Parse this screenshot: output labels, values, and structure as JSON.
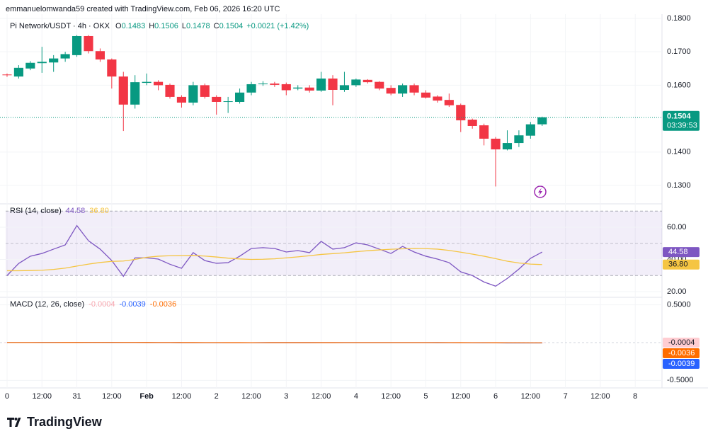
{
  "attribution": "emmanuelomwanda59 created with TradingView.com, Feb 06, 2026 16:20 UTC",
  "logo": "TradingView",
  "chart_data": [
    {
      "type": "candlestick",
      "title": "Pi Network/USDT · 4h · OKX",
      "ohlc_letters": [
        "O",
        "H",
        "L",
        "C"
      ],
      "change_label": "+0.0021 (+1.42%)",
      "countdown": "03:39:53",
      "up_color": "#089981",
      "down_color": "#f23645",
      "open": [
        0.1632,
        0.1626,
        0.165,
        0.1666,
        0.1668,
        0.168,
        0.169,
        0.1747,
        0.1702,
        0.1677,
        0.1626,
        0.1542,
        0.1607,
        0.161,
        0.1601,
        0.1565,
        0.1548,
        0.16,
        0.1565,
        0.155,
        0.155,
        0.1578,
        0.1603,
        0.1605,
        0.1603,
        0.159,
        0.1593,
        0.1584,
        0.162,
        0.1586,
        0.16,
        0.1616,
        0.161,
        0.1592,
        0.1575,
        0.16,
        0.1578,
        0.1566,
        0.1556,
        0.1541,
        0.1497,
        0.148,
        0.144,
        0.1408,
        0.1427,
        0.1449,
        0.1483
      ],
      "high": [
        0.1635,
        0.166,
        0.1672,
        0.1715,
        0.169,
        0.17,
        0.175,
        0.175,
        0.171,
        0.168,
        0.164,
        0.163,
        0.1635,
        0.1615,
        0.1605,
        0.157,
        0.161,
        0.1605,
        0.157,
        0.1565,
        0.159,
        0.161,
        0.1612,
        0.161,
        0.1608,
        0.16,
        0.16,
        0.164,
        0.163,
        0.164,
        0.162,
        0.1618,
        0.1612,
        0.16,
        0.1605,
        0.1605,
        0.1585,
        0.157,
        0.1575,
        0.1545,
        0.15,
        0.1485,
        0.1445,
        0.1465,
        0.1465,
        0.149,
        0.1506
      ],
      "low": [
        0.1625,
        0.162,
        0.1645,
        0.1637,
        0.164,
        0.167,
        0.1685,
        0.1695,
        0.167,
        0.159,
        0.1463,
        0.153,
        0.16,
        0.1585,
        0.156,
        0.1533,
        0.154,
        0.156,
        0.1512,
        0.1517,
        0.1545,
        0.157,
        0.1598,
        0.1595,
        0.157,
        0.1585,
        0.1578,
        0.158,
        0.154,
        0.158,
        0.1595,
        0.1605,
        0.1585,
        0.157,
        0.1565,
        0.157,
        0.156,
        0.1548,
        0.1535,
        0.146,
        0.147,
        0.142,
        0.1297,
        0.1405,
        0.1415,
        0.144,
        0.1478
      ],
      "close": [
        0.163,
        0.1652,
        0.1667,
        0.167,
        0.168,
        0.1693,
        0.1747,
        0.1702,
        0.1677,
        0.1626,
        0.1542,
        0.1609,
        0.161,
        0.16,
        0.1565,
        0.1548,
        0.16,
        0.1565,
        0.155,
        0.1552,
        0.1578,
        0.1603,
        0.1605,
        0.1601,
        0.1585,
        0.1593,
        0.1584,
        0.162,
        0.1586,
        0.16,
        0.1617,
        0.1609,
        0.159,
        0.1575,
        0.16,
        0.1578,
        0.1563,
        0.1554,
        0.154,
        0.1495,
        0.1478,
        0.144,
        0.1408,
        0.1427,
        0.145,
        0.1483,
        0.1504
      ],
      "ylim": [
        0.1245,
        0.1838
      ],
      "yticks": [
        {
          "value": 0.13,
          "label": "0.1300"
        },
        {
          "value": 0.14,
          "label": "0.1400"
        },
        {
          "value": 0.16,
          "label": "0.1600"
        },
        {
          "value": 0.17,
          "label": "0.1700"
        },
        {
          "value": 0.18,
          "label": "0.1800"
        }
      ],
      "xlim": [
        -0.12,
        56.3
      ],
      "xticks": [
        {
          "value": 0,
          "label": "0"
        },
        {
          "value": 3,
          "label": "12:00"
        },
        {
          "value": 6,
          "label": "31"
        },
        {
          "value": 9,
          "label": "12:00"
        },
        {
          "value": 12,
          "label": "Feb"
        },
        {
          "value": 15,
          "label": "12:00"
        },
        {
          "value": 18,
          "label": "2"
        },
        {
          "value": 21,
          "label": "12:00"
        },
        {
          "value": 24,
          "label": "3"
        },
        {
          "value": 27,
          "label": "12:00"
        },
        {
          "value": 30,
          "label": "4"
        },
        {
          "value": 33,
          "label": "12:00"
        },
        {
          "value": 36,
          "label": "5"
        },
        {
          "value": 39,
          "label": "12:00"
        },
        {
          "value": 42,
          "label": "6"
        },
        {
          "value": 45,
          "label": "12:00"
        },
        {
          "value": 48,
          "label": "7"
        },
        {
          "value": 51,
          "label": "12:00"
        },
        {
          "value": 54,
          "label": "8"
        }
      ]
    },
    {
      "type": "line",
      "title": "RSI (14, close)",
      "ylim": [
        16.5,
        73.6
      ],
      "yticks": [
        {
          "value": 20,
          "label": "20.00"
        },
        {
          "value": 40,
          "label": "40.00"
        },
        {
          "value": 60,
          "label": "60.00"
        }
      ],
      "band": [
        30,
        70
      ],
      "midline": 50,
      "band_color": "#7e57c2",
      "series": [
        {
          "color": "#7e57c2",
          "label_text_color": "#ffffff",
          "values": [
            30,
            37.5,
            42,
            43.7,
            46.4,
            49,
            61,
            51.6,
            46.4,
            39.3,
            29.5,
            41,
            41,
            40.2,
            37,
            34.5,
            44.2,
            39.3,
            37.6,
            38,
            42,
            46.8,
            47.3,
            46.8,
            44.6,
            45.5,
            44.2,
            51.2,
            46.4,
            47.3,
            50.3,
            49,
            46.4,
            43.7,
            48.1,
            44.6,
            42,
            40.2,
            38,
            32.3,
            30,
            26,
            23.4,
            28.2,
            34,
            40.7,
            44.58
          ]
        },
        {
          "color": "#f5c542",
          "label_text_color": "#131722",
          "values": [
            33.0,
            33.0,
            33.1,
            33.3,
            33.8,
            34.6,
            35.9,
            37.1,
            38.1,
            38.8,
            39.0,
            40.0,
            41.3,
            42.0,
            42.3,
            42.4,
            42.5,
            42.1,
            41.5,
            40.8,
            40.3,
            40.0,
            40.1,
            40.4,
            41.0,
            41.6,
            42.3,
            43.1,
            43.6,
            44.1,
            44.8,
            45.4,
            45.9,
            46.3,
            46.6,
            46.8,
            46.7,
            46.4,
            45.6,
            44.5,
            43.3,
            42.0,
            40.5,
            38.9,
            37.8,
            37.1,
            36.8
          ],
          "value_labels": [
            null,
            null,
            null,
            null,
            null,
            null,
            null,
            null,
            null,
            null,
            null,
            null,
            null,
            null,
            null,
            null,
            null,
            null,
            null,
            null,
            null,
            null,
            null,
            null,
            null,
            null,
            null,
            null,
            null,
            null,
            null,
            null,
            null,
            null,
            null,
            null,
            null,
            null,
            null,
            null,
            null,
            null,
            null,
            null,
            null,
            null,
            "36.80"
          ]
        }
      ]
    },
    {
      "type": "line",
      "title": "MACD (12, 26, close)",
      "ylim": [
        -0.6,
        0.6
      ],
      "yticks": [
        {
          "value": -0.5,
          "label": "-0.5000"
        },
        {
          "value": 0.5,
          "label": "0.5000"
        }
      ],
      "series": [
        {
          "style": "histogram",
          "color": "#ffcdd2",
          "label_text_color": "#131722",
          "values": [
            0.0002,
            0.0003,
            0.0005,
            0.0006,
            0.0008,
            0.0008,
            0.0013,
            0.0013,
            0.0009,
            0.0002,
            -0.0009,
            -0.0011,
            -0.0012,
            -0.0013,
            -0.0014,
            -0.0015,
            -0.0012,
            -0.0011,
            -0.0011,
            -0.001,
            -0.0007,
            -0.0002,
            0.0001,
            0.0002,
            0.0002,
            0.0002,
            0.0002,
            0.0004,
            0.0003,
            0.0003,
            0.0004,
            0.0004,
            0.0002,
            0,
            0,
            -0.0001,
            -0.0002,
            -0.0003,
            -0.0005,
            -0.0009,
            -0.0012,
            -0.0016,
            -0.002,
            -0.0019,
            -0.0016,
            -0.0008,
            -0.0004
          ]
        },
        {
          "color": "#2962ff",
          "label_text_color": "#ffffff",
          "values": [
            0.001,
            0.0012,
            0.0015,
            0.0018,
            0.0021,
            0.0024,
            0.0032,
            0.0035,
            0.0034,
            0.0028,
            0.0015,
            0.001,
            0.0006,
            0.0002,
            -0.0003,
            -0.0008,
            -0.0008,
            -0.001,
            -0.0013,
            -0.0015,
            -0.0014,
            -0.001,
            -0.0007,
            -0.0005,
            -0.0005,
            -0.0004,
            -0.0004,
            -0.0001,
            -0.0001,
            0,
            0.0002,
            0.0003,
            0.0002,
            0,
            0,
            -0.0001,
            -0.0003,
            -0.0005,
            -0.0008,
            -0.0014,
            -0.002,
            -0.0028,
            -0.0037,
            -0.0041,
            -0.0042,
            -0.0041,
            -0.0039
          ]
        },
        {
          "color": "#ff6d00",
          "label_text_color": "#ffffff",
          "values": [
            0.0008,
            0.0009,
            0.001,
            0.0012,
            0.0013,
            0.0016,
            0.0019,
            0.0022,
            0.0025,
            0.0026,
            0.0024,
            0.0021,
            0.0018,
            0.0015,
            0.0011,
            0.0007,
            0.0004,
            0.0001,
            -0.0002,
            -0.0005,
            -0.0007,
            -0.0008,
            -0.0008,
            -0.0007,
            -0.0007,
            -0.0006,
            -0.0006,
            -0.0005,
            -0.0004,
            -0.0003,
            -0.0002,
            -0.0001,
            0,
            0,
            0,
            0,
            -0.0001,
            -0.0002,
            -0.0003,
            -0.0005,
            -0.0008,
            -0.0012,
            -0.0017,
            -0.0022,
            -0.0026,
            -0.0033,
            -0.0036
          ]
        }
      ]
    }
  ]
}
